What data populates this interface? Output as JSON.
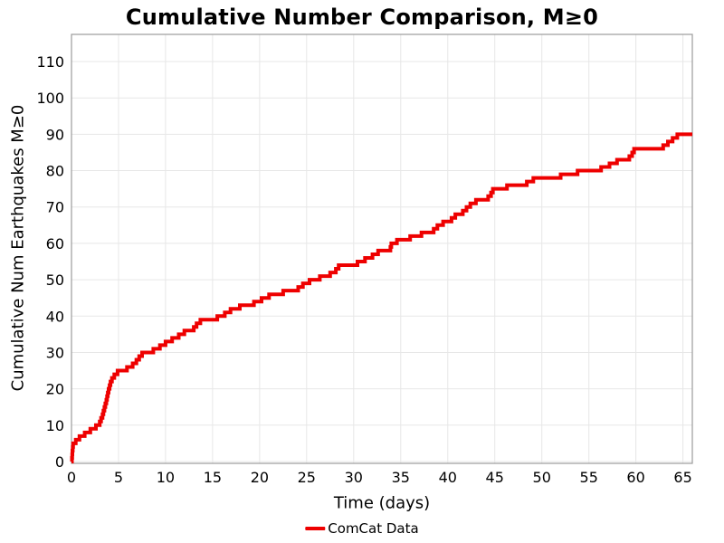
{
  "chart_data": {
    "type": "step-line",
    "title": "Cumulative Number Comparison, M≥0",
    "xlabel": "Time (days)",
    "ylabel": "Cumulative Num Earthquakes M≥0",
    "x_ticks": [
      0,
      5,
      10,
      15,
      20,
      25,
      30,
      35,
      40,
      45,
      50,
      55,
      60,
      65
    ],
    "y_ticks": [
      0,
      10,
      20,
      30,
      40,
      50,
      60,
      70,
      80,
      90,
      100,
      110
    ],
    "xlim": [
      0,
      66
    ],
    "ylim": [
      0,
      117.5
    ],
    "grid": true,
    "legend_position": "bottom-center",
    "colors": {
      "grid": "#e7e7e7",
      "frame": "#9b9b9b",
      "text": "#000000"
    },
    "series": [
      {
        "name": "ComCat Data",
        "color": "#ee0000",
        "line_width": 4,
        "start": {
          "t": 0,
          "value": 0
        },
        "event_times_days": [
          0.05,
          0.08,
          0.1,
          0.13,
          0.17,
          0.45,
          0.85,
          1.4,
          2.0,
          2.6,
          3.0,
          3.15,
          3.3,
          3.4,
          3.5,
          3.6,
          3.7,
          3.78,
          3.86,
          3.94,
          4.05,
          4.15,
          4.3,
          4.55,
          4.9,
          5.9,
          6.5,
          6.9,
          7.2,
          7.5,
          8.7,
          9.4,
          10.0,
          10.7,
          11.4,
          12.0,
          13.0,
          13.3,
          13.7,
          15.5,
          16.3,
          16.9,
          17.9,
          19.4,
          20.2,
          21.0,
          22.5,
          24.1,
          24.6,
          25.3,
          26.4,
          27.5,
          28.1,
          28.4,
          30.4,
          31.2,
          32.0,
          32.6,
          33.9,
          34.0,
          34.6,
          36.0,
          37.2,
          38.5,
          38.9,
          39.5,
          40.4,
          40.8,
          41.6,
          42.0,
          42.4,
          43.0,
          44.3,
          44.6,
          44.8,
          46.3,
          48.4,
          49.1,
          52.0,
          53.8,
          56.3,
          57.2,
          58.0,
          59.3,
          59.6,
          59.8,
          62.9,
          63.4,
          63.9,
          64.4
        ],
        "end_time_days": 66,
        "final_value": 90
      }
    ]
  }
}
